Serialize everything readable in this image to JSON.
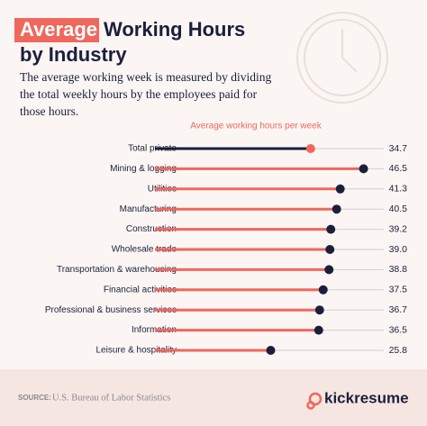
{
  "chart_data": {
    "type": "lollipop",
    "title": {
      "highlight": "Average",
      "line1": "Working Hours",
      "line2": "by Industry"
    },
    "subtitle": [
      "The average working week is measured by dividing",
      "the total weekly hours by the employees paid for",
      "those hours."
    ],
    "x_label": "Average working hours per week",
    "categories": [
      "Total private",
      "Mining & logging",
      "Utilities",
      "Manufacturing",
      "Construction",
      "Wholesale trade",
      "Transportation & warehousing",
      "Financial activities",
      "Professional & business services",
      "Information",
      "Leisure & hospitality"
    ],
    "values": [
      34.7,
      46.5,
      41.3,
      40.5,
      39.2,
      39.0,
      38.8,
      37.5,
      36.7,
      36.5,
      25.8
    ],
    "value_labels": [
      "34.7",
      "46.5",
      "41.3",
      "40.5",
      "39.2",
      "39.0",
      "38.8",
      "37.5",
      "36.7",
      "36.5",
      "25.8"
    ],
    "xlim": [
      0,
      51
    ],
    "color": "#f0675d",
    "dot_color": "#1b1f3b",
    "highlight_index": 0,
    "source_label": "SOURCE:",
    "source": "U.S. Bureau of Labor Statistics"
  },
  "brand": "kickresume"
}
